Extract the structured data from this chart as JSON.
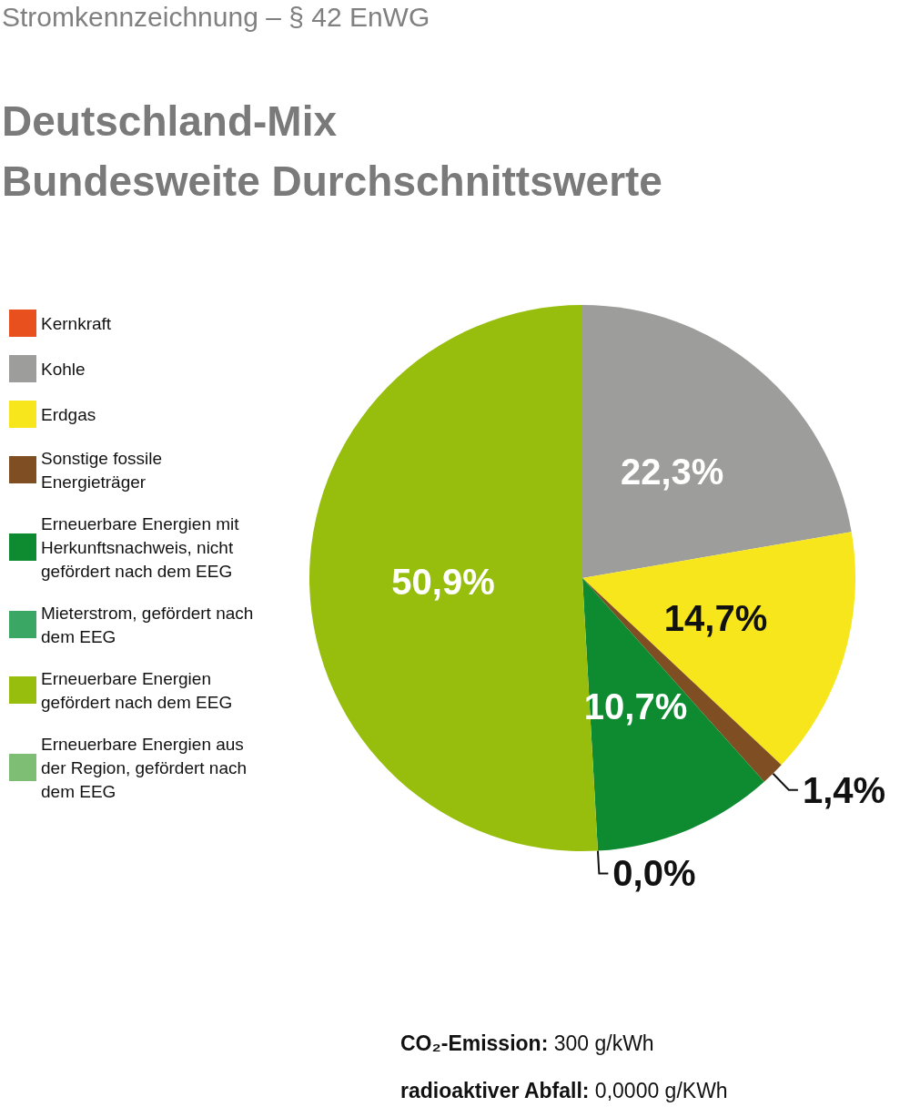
{
  "chart_data": {
    "type": "pie",
    "subtitle": "Stromkennzeichnung – § 42 EnWG",
    "title": "Deutschland-Mix\nBundesweite Durchschnittswerte",
    "categories": [
      "Kernkraft",
      "Kohle",
      "Erdgas",
      "Sonstige fossile Energieträger",
      "Erneuerbare Energien mit Herkunftsnachweis, nicht gefördert nach dem EEG",
      "Mieterstrom, gefördert nach dem EEG",
      "Erneuerbare Energien gefördert nach dem EEG",
      "Erneuerbare Energien aus der Region, gefördert nach dem EEG"
    ],
    "values": [
      null,
      22.3,
      14.7,
      1.4,
      10.7,
      0.0,
      50.9,
      null
    ],
    "value_labels": [
      null,
      "22,3%",
      "14,7%",
      "1,4%",
      "10,7%",
      "0,0%",
      "50,9%",
      null
    ],
    "colors": [
      "#e8501e",
      "#9d9d9c",
      "#f6e61b",
      "#7f4e22",
      "#0e8a30",
      "#3aa864",
      "#97be0d",
      "#7dbd74"
    ],
    "legend": "left",
    "annotations": [
      "CO₂-Emission: 300 g/kWh",
      "radioaktiver Abfall: 0,0000 g/KWh"
    ]
  }
}
